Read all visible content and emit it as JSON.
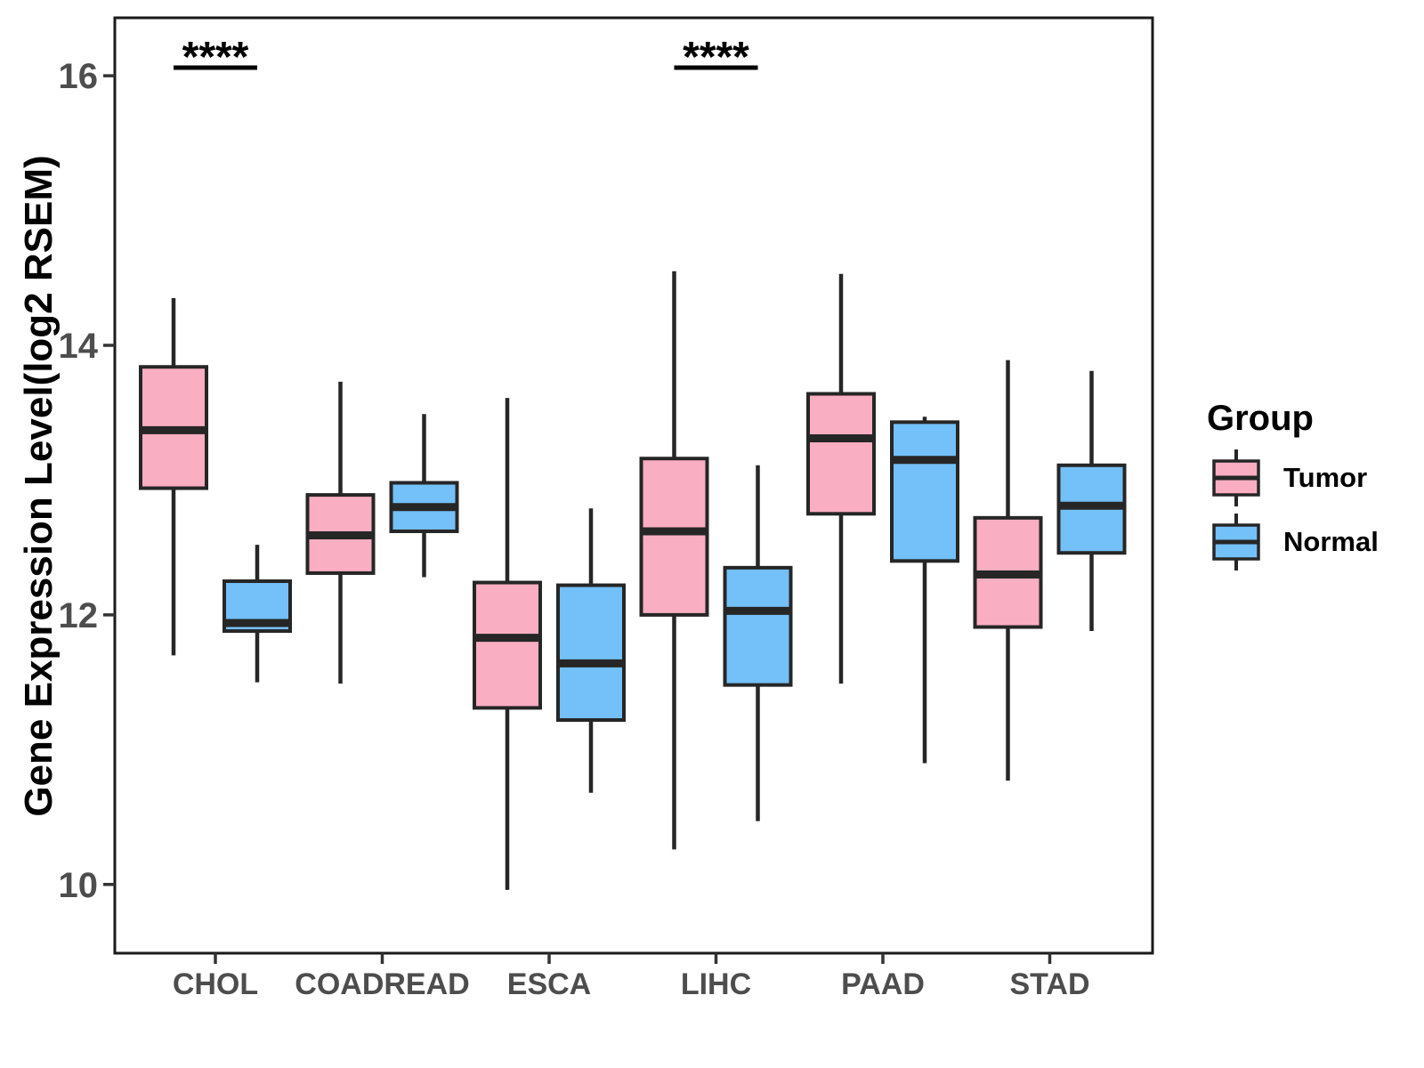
{
  "figure": {
    "background": "#ffffff"
  },
  "chart_data": {
    "type": "boxplot",
    "title": "",
    "xlabel": "",
    "ylabel": "Gene Expression Level(log2 RSEM)",
    "categories": [
      "CHOL",
      "COADREAD",
      "ESCA",
      "LIHC",
      "PAAD",
      "STAD"
    ],
    "group_names": [
      "Tumor",
      "Normal"
    ],
    "yticks": [
      10,
      12,
      14,
      16
    ],
    "ylim": [
      9.49,
      16.43
    ],
    "grid": false,
    "legend": {
      "title": "Group",
      "position": "right",
      "entries": [
        {
          "label": "Tumor",
          "color": "#FAAEC2"
        },
        {
          "label": "Normal",
          "color": "#74C0F8"
        }
      ]
    },
    "style": {
      "box_border": "#262626",
      "median_color": "#262626",
      "whisker_color": "#262626",
      "axis_color": "#1a1a1a",
      "tick_label_color": "#4d4d4d",
      "significance_color": "#000000"
    },
    "significance": [
      {
        "category": "CHOL",
        "label": "****",
        "y": 16.06
      },
      {
        "category": "LIHC",
        "label": "****",
        "y": 16.06
      }
    ],
    "series": [
      {
        "name": "Tumor",
        "color": "#FAAEC2",
        "boxes": [
          {
            "category": "CHOL",
            "low": 11.7,
            "q1": 12.94,
            "median": 13.37,
            "q3": 13.84,
            "high": 14.35
          },
          {
            "category": "COADREAD",
            "low": 11.49,
            "q1": 12.31,
            "median": 12.59,
            "q3": 12.89,
            "high": 13.73
          },
          {
            "category": "ESCA",
            "low": 9.96,
            "q1": 11.31,
            "median": 11.83,
            "q3": 12.24,
            "high": 13.61
          },
          {
            "category": "LIHC",
            "low": 10.26,
            "q1": 12.0,
            "median": 12.62,
            "q3": 13.16,
            "high": 14.55
          },
          {
            "category": "PAAD",
            "low": 11.49,
            "q1": 12.75,
            "median": 13.31,
            "q3": 13.64,
            "high": 14.53
          },
          {
            "category": "STAD",
            "low": 10.77,
            "q1": 11.91,
            "median": 12.3,
            "q3": 12.72,
            "high": 13.89
          }
        ]
      },
      {
        "name": "Normal",
        "color": "#74C0F8",
        "boxes": [
          {
            "category": "CHOL",
            "low": 11.5,
            "q1": 11.88,
            "median": 11.94,
            "q3": 12.25,
            "high": 12.52
          },
          {
            "category": "COADREAD",
            "low": 12.28,
            "q1": 12.62,
            "median": 12.8,
            "q3": 12.98,
            "high": 13.49
          },
          {
            "category": "ESCA",
            "low": 10.68,
            "q1": 11.22,
            "median": 11.64,
            "q3": 12.22,
            "high": 12.79
          },
          {
            "category": "LIHC",
            "low": 10.47,
            "q1": 11.48,
            "median": 12.03,
            "q3": 12.35,
            "high": 13.11
          },
          {
            "category": "PAAD",
            "low": 10.9,
            "q1": 12.4,
            "median": 13.15,
            "q3": 13.43,
            "high": 13.47
          },
          {
            "category": "STAD",
            "low": 11.88,
            "q1": 12.46,
            "median": 12.81,
            "q3": 13.11,
            "high": 13.81
          }
        ]
      }
    ]
  }
}
